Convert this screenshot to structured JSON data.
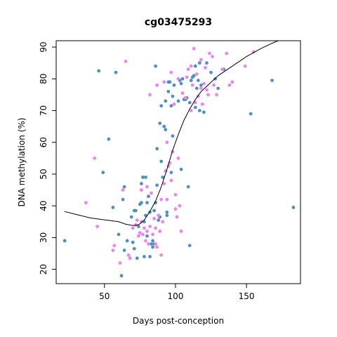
{
  "chart_data": {
    "type": "scatter",
    "title": "cg03475293",
    "xlabel": "Days post-conception",
    "ylabel": "DNA methylation (%)",
    "xlim": [
      16,
      188
    ],
    "ylim": [
      15.5,
      92
    ],
    "xticks": [
      50,
      100,
      150
    ],
    "yticks": [
      20,
      30,
      40,
      50,
      60,
      70,
      80,
      90
    ],
    "grid": false,
    "legend": "none",
    "colors": {
      "blue": "#4f8fc8",
      "pink": "#ee82ee",
      "line": "#000000"
    },
    "series": [
      {
        "color": "#4f8fc8",
        "points": [
          [
            22,
            29
          ],
          [
            46,
            82.5
          ],
          [
            49,
            50.5
          ],
          [
            53,
            61
          ],
          [
            56,
            39.5
          ],
          [
            58,
            82
          ],
          [
            60,
            31
          ],
          [
            62,
            18
          ],
          [
            63,
            42
          ],
          [
            64,
            46
          ],
          [
            64,
            26
          ],
          [
            66,
            29
          ],
          [
            68,
            23.5
          ],
          [
            69,
            36.5
          ],
          [
            70,
            28.5
          ],
          [
            71,
            26.5
          ],
          [
            71,
            38.5
          ],
          [
            72,
            38.5
          ],
          [
            73,
            23.5
          ],
          [
            74,
            33.5
          ],
          [
            75,
            40.5
          ],
          [
            76,
            41
          ],
          [
            76,
            47
          ],
          [
            77,
            49
          ],
          [
            78,
            35
          ],
          [
            78,
            24
          ],
          [
            79,
            49
          ],
          [
            79,
            37
          ],
          [
            80,
            41
          ],
          [
            80,
            30.5
          ],
          [
            81,
            43
          ],
          [
            82,
            38
          ],
          [
            82,
            24
          ],
          [
            83,
            28
          ],
          [
            84,
            27
          ],
          [
            84,
            29
          ],
          [
            85,
            28
          ],
          [
            85,
            38.5
          ],
          [
            86,
            41
          ],
          [
            86,
            84
          ],
          [
            87,
            46.5
          ],
          [
            87,
            58
          ],
          [
            88,
            35.5
          ],
          [
            89,
            36.5
          ],
          [
            89,
            66
          ],
          [
            90,
            71.5
          ],
          [
            90,
            54
          ],
          [
            91,
            49
          ],
          [
            92,
            65
          ],
          [
            93,
            64
          ],
          [
            93,
            73
          ],
          [
            94,
            37
          ],
          [
            94,
            38
          ],
          [
            95,
            76
          ],
          [
            95,
            79
          ],
          [
            96,
            79
          ],
          [
            97,
            71.5
          ],
          [
            97,
            50.5
          ],
          [
            98,
            62
          ],
          [
            98,
            74.5
          ],
          [
            99,
            78
          ],
          [
            102,
            73
          ],
          [
            103,
            79.5
          ],
          [
            104,
            78.5
          ],
          [
            104,
            51.5
          ],
          [
            105,
            80
          ],
          [
            106,
            73.5
          ],
          [
            107,
            73.5
          ],
          [
            108,
            74
          ],
          [
            109,
            46
          ],
          [
            110,
            27.5
          ],
          [
            110,
            72.5
          ],
          [
            111,
            79.5
          ],
          [
            112,
            80.5
          ],
          [
            113,
            81
          ],
          [
            114,
            84
          ],
          [
            114,
            71
          ],
          [
            115,
            77
          ],
          [
            116,
            79.5
          ],
          [
            117,
            85
          ],
          [
            117,
            70
          ],
          [
            118,
            78
          ],
          [
            120,
            69.5
          ],
          [
            122,
            85
          ],
          [
            125,
            82
          ],
          [
            128,
            80
          ],
          [
            130,
            77
          ],
          [
            134,
            83
          ],
          [
            153,
            69
          ],
          [
            168,
            79.5
          ],
          [
            183,
            39.5
          ]
        ]
      },
      {
        "color": "#ee82ee",
        "points": [
          [
            37,
            41
          ],
          [
            43,
            55
          ],
          [
            45,
            33.5
          ],
          [
            56,
            26
          ],
          [
            57,
            27.5
          ],
          [
            61,
            22
          ],
          [
            63,
            45
          ],
          [
            65,
            85.5
          ],
          [
            67,
            24.5
          ],
          [
            68,
            23.5
          ],
          [
            70,
            33
          ],
          [
            72,
            34
          ],
          [
            73,
            35.5
          ],
          [
            74,
            30.5
          ],
          [
            75,
            31.5
          ],
          [
            76,
            35
          ],
          [
            76,
            45
          ],
          [
            77,
            31
          ],
          [
            78,
            33
          ],
          [
            79,
            29
          ],
          [
            80,
            46
          ],
          [
            80,
            32
          ],
          [
            81,
            28
          ],
          [
            82,
            33.5
          ],
          [
            82,
            75
          ],
          [
            83,
            44
          ],
          [
            84,
            31
          ],
          [
            85,
            36
          ],
          [
            86,
            28
          ],
          [
            86,
            33
          ],
          [
            87,
            27
          ],
          [
            87,
            78
          ],
          [
            88,
            37
          ],
          [
            89,
            32
          ],
          [
            90,
            24.5
          ],
          [
            90,
            42
          ],
          [
            91,
            35
          ],
          [
            92,
            47
          ],
          [
            92,
            79
          ],
          [
            93,
            51
          ],
          [
            94,
            60
          ],
          [
            94,
            42
          ],
          [
            95,
            52.5
          ],
          [
            96,
            53.5
          ],
          [
            97,
            82
          ],
          [
            97,
            48
          ],
          [
            98,
            57
          ],
          [
            99,
            72
          ],
          [
            100,
            39
          ],
          [
            100,
            43.5
          ],
          [
            101,
            36.5
          ],
          [
            102,
            80
          ],
          [
            102,
            55
          ],
          [
            103,
            40
          ],
          [
            104,
            32
          ],
          [
            105,
            75.5
          ],
          [
            107,
            74
          ],
          [
            108,
            80.5
          ],
          [
            109,
            83
          ],
          [
            111,
            84
          ],
          [
            111,
            70
          ],
          [
            112,
            78
          ],
          [
            113,
            89.5
          ],
          [
            114,
            72.5
          ],
          [
            115,
            81.5
          ],
          [
            116,
            74.5
          ],
          [
            118,
            77
          ],
          [
            118,
            86
          ],
          [
            119,
            72
          ],
          [
            120,
            78.5
          ],
          [
            121,
            83.5
          ],
          [
            122,
            76.5
          ],
          [
            123,
            75
          ],
          [
            124,
            88
          ],
          [
            126,
            87
          ],
          [
            127,
            78
          ],
          [
            129,
            75
          ],
          [
            133,
            83
          ],
          [
            136,
            88
          ],
          [
            138,
            78
          ],
          [
            140,
            79
          ],
          [
            149,
            84
          ],
          [
            155,
            88.5
          ]
        ]
      }
    ],
    "smooth_line": [
      [
        22,
        38.2
      ],
      [
        30,
        37.3
      ],
      [
        40,
        36.2
      ],
      [
        50,
        35.6
      ],
      [
        60,
        35.0
      ],
      [
        65,
        34.2
      ],
      [
        70,
        33.8
      ],
      [
        74,
        34.0
      ],
      [
        78,
        35.5
      ],
      [
        82,
        38.2
      ],
      [
        86,
        41.5
      ],
      [
        90,
        46.0
      ],
      [
        94,
        51.5
      ],
      [
        98,
        57.5
      ],
      [
        102,
        62.5
      ],
      [
        106,
        67.0
      ],
      [
        110,
        70.5
      ],
      [
        114,
        73.5
      ],
      [
        118,
        76.0
      ],
      [
        124,
        78.5
      ],
      [
        130,
        81.0
      ],
      [
        140,
        84.0
      ],
      [
        150,
        87.0
      ],
      [
        160,
        89.5
      ],
      [
        168,
        91.2
      ],
      [
        178,
        93.0
      ]
    ]
  }
}
